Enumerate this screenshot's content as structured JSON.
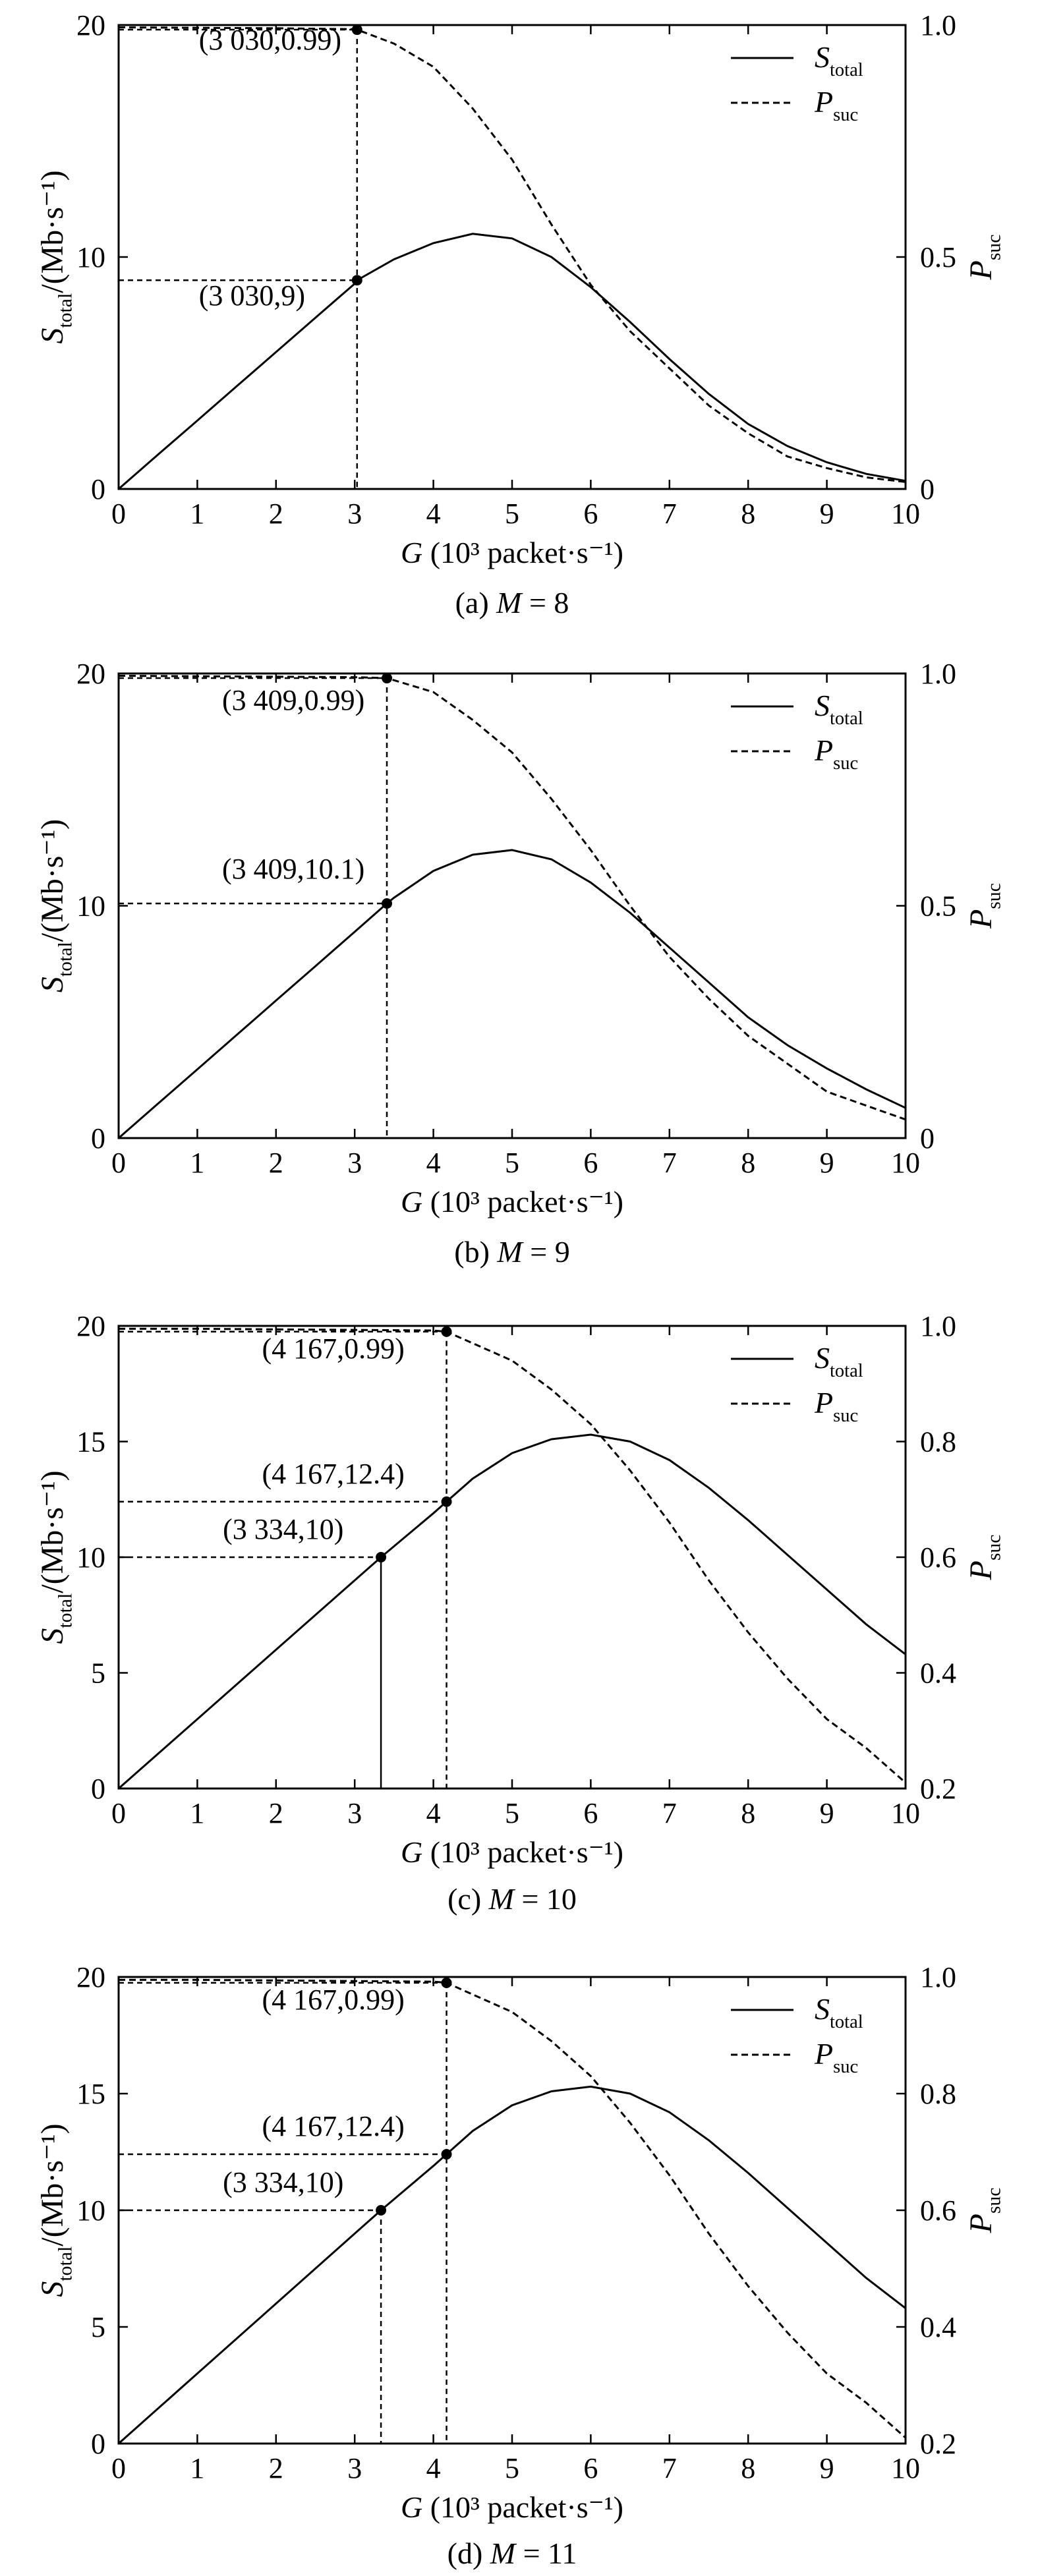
{
  "chart_data": [
    {
      "type": "line",
      "caption": "(a) M = 8",
      "caption_prefix": "(a) ",
      "caption_var": "M",
      "caption_value": " = 8",
      "xlabel_var": "G",
      "xlabel_unit": " (10³ packet·s⁻¹)",
      "ylabel_left": "Stotal/(Mb·s⁻¹)",
      "ylabel_right": "Psuc",
      "xlim": [
        0,
        10
      ],
      "ylim_left": [
        0,
        20
      ],
      "ylim_right": [
        0,
        1
      ],
      "xticks": [
        "0",
        "1",
        "2",
        "3",
        "4",
        "5",
        "6",
        "7",
        "8",
        "9",
        "10"
      ],
      "yticks_left": [
        "0",
        "10",
        "20"
      ],
      "yticks_left_values": [
        0,
        10,
        20
      ],
      "yticks_right": [
        "0",
        "0.5",
        "1.0"
      ],
      "yticks_right_values": [
        0,
        0.5,
        1.0
      ],
      "legend_position": "top-right",
      "series": [
        {
          "name": "Stotal",
          "axis": "left",
          "style": "solid",
          "x": [
            0,
            0.5,
            1,
            1.5,
            2,
            2.5,
            3,
            3.03,
            3.5,
            4,
            4.5,
            5,
            5.5,
            6,
            6.5,
            7,
            7.5,
            8,
            8.5,
            9,
            9.5,
            10
          ],
          "y": [
            0,
            1.48,
            2.95,
            4.43,
            5.9,
            7.38,
            8.85,
            9,
            9.9,
            10.6,
            11,
            10.8,
            10,
            8.7,
            7.2,
            5.6,
            4.1,
            2.8,
            1.85,
            1.15,
            0.65,
            0.35
          ]
        },
        {
          "name": "Psuc",
          "axis": "right",
          "style": "dashed",
          "x": [
            0,
            1,
            2,
            3,
            3.03,
            3.5,
            4,
            4.5,
            5,
            5.5,
            6,
            6.5,
            7,
            7.5,
            8,
            8.5,
            9,
            9.5,
            10
          ],
          "y": [
            0.995,
            0.994,
            0.993,
            0.991,
            0.99,
            0.96,
            0.91,
            0.82,
            0.71,
            0.57,
            0.44,
            0.34,
            0.26,
            0.18,
            0.12,
            0.07,
            0.045,
            0.025,
            0.015
          ]
        }
      ],
      "annotations": [
        {
          "text": "(3 030,0.99)",
          "x": 3.03,
          "y": 0.99,
          "axis": "right",
          "drop_to_axis": true,
          "drop_style": "dashed",
          "guide_to_y_axis": true,
          "label_dx": -240,
          "label_dy": 30
        },
        {
          "text": "(3 030,9)",
          "x": 3.03,
          "y": 9,
          "axis": "left",
          "drop_to_axis": false,
          "drop_style": "dashed",
          "guide_to_y_axis": true,
          "label_dx": -240,
          "label_dy": 38
        }
      ]
    },
    {
      "type": "line",
      "caption": "(b) M = 9",
      "caption_prefix": "(b) ",
      "caption_var": "M",
      "caption_value": " = 9",
      "xlabel_var": "G",
      "xlabel_unit": " (10³ packet·s⁻¹)",
      "ylabel_left": "Stotal/(Mb·s⁻¹)",
      "ylabel_right": "Psuc",
      "xlim": [
        0,
        10
      ],
      "ylim_left": [
        0,
        20
      ],
      "ylim_right": [
        0,
        1
      ],
      "xticks": [
        "0",
        "1",
        "2",
        "3",
        "4",
        "5",
        "6",
        "7",
        "8",
        "9",
        "10"
      ],
      "yticks_left": [
        "0",
        "10",
        "20"
      ],
      "yticks_left_values": [
        0,
        10,
        20
      ],
      "yticks_right": [
        "0",
        "0.5",
        "1.0"
      ],
      "yticks_right_values": [
        0,
        0.5,
        1.0
      ],
      "legend_position": "top-right",
      "series": [
        {
          "name": "Stotal",
          "axis": "left",
          "style": "solid",
          "x": [
            0,
            0.5,
            1,
            1.5,
            2,
            2.5,
            3,
            3.409,
            3.5,
            4,
            4.5,
            5,
            5.5,
            6,
            6.5,
            7,
            7.5,
            8,
            8.5,
            9,
            9.5,
            10
          ],
          "y": [
            0,
            1.48,
            2.96,
            4.44,
            5.92,
            7.4,
            8.88,
            10.1,
            10.35,
            11.5,
            12.2,
            12.4,
            12.0,
            11.0,
            9.7,
            8.2,
            6.7,
            5.2,
            4.0,
            3.0,
            2.1,
            1.3
          ]
        },
        {
          "name": "Psuc",
          "axis": "right",
          "style": "dashed",
          "x": [
            0,
            1,
            2,
            3,
            3.409,
            4,
            4.5,
            5,
            5.5,
            6,
            6.5,
            7,
            7.5,
            8,
            8.5,
            9,
            9.5,
            10
          ],
          "y": [
            0.995,
            0.994,
            0.993,
            0.992,
            0.99,
            0.96,
            0.9,
            0.83,
            0.73,
            0.62,
            0.5,
            0.39,
            0.3,
            0.22,
            0.16,
            0.1,
            0.07,
            0.04
          ]
        }
      ],
      "annotations": [
        {
          "text": "(3 409,0.99)",
          "x": 3.409,
          "y": 0.99,
          "axis": "right",
          "drop_to_axis": true,
          "drop_style": "dashed",
          "guide_to_y_axis": true,
          "label_dx": -250,
          "label_dy": 48
        },
        {
          "text": "(3 409,10.1)",
          "x": 3.409,
          "y": 10.1,
          "axis": "left",
          "drop_to_axis": false,
          "drop_style": "dashed",
          "guide_to_y_axis": true,
          "label_dx": -250,
          "label_dy": -38
        }
      ]
    },
    {
      "type": "line",
      "caption": "(c) M = 10",
      "caption_prefix": "(c) ",
      "caption_var": "M",
      "caption_value": " = 10",
      "xlabel_var": "G",
      "xlabel_unit": " (10³ packet·s⁻¹)",
      "ylabel_left": "Stotal/(Mb·s⁻¹)",
      "ylabel_right": "Psuc",
      "xlim": [
        0,
        10
      ],
      "ylim_left": [
        0,
        20
      ],
      "ylim_right": [
        0.2,
        1.0
      ],
      "xticks": [
        "0",
        "1",
        "2",
        "3",
        "4",
        "5",
        "6",
        "7",
        "8",
        "9",
        "10"
      ],
      "yticks_left": [
        "0",
        "5",
        "10",
        "15",
        "20"
      ],
      "yticks_left_values": [
        0,
        5,
        10,
        15,
        20
      ],
      "yticks_right": [
        "0.2",
        "0.4",
        "0.6",
        "0.8",
        "1.0"
      ],
      "yticks_right_values": [
        0.2,
        0.4,
        0.6,
        0.8,
        1.0
      ],
      "legend_position": "top-right",
      "series": [
        {
          "name": "Stotal",
          "axis": "left",
          "style": "solid",
          "x": [
            0,
            1,
            2,
            3,
            3.334,
            4,
            4.167,
            4.5,
            5,
            5.5,
            6,
            6.5,
            7,
            7.5,
            8,
            8.5,
            9,
            9.5,
            10
          ],
          "y": [
            0,
            3,
            6,
            9,
            10,
            11.9,
            12.4,
            13.4,
            14.5,
            15.1,
            15.3,
            15.0,
            14.2,
            13.0,
            11.6,
            10.1,
            8.6,
            7.1,
            5.8
          ]
        },
        {
          "name": "Psuc",
          "axis": "right",
          "style": "dashed",
          "x": [
            0,
            1,
            2,
            3,
            4,
            4.167,
            4.5,
            5,
            5.5,
            6,
            6.5,
            7,
            7.5,
            8,
            8.5,
            9,
            9.5,
            10
          ],
          "y": [
            0.995,
            0.995,
            0.994,
            0.993,
            0.992,
            0.99,
            0.97,
            0.94,
            0.89,
            0.83,
            0.75,
            0.66,
            0.56,
            0.47,
            0.39,
            0.32,
            0.27,
            0.21
          ]
        }
      ],
      "annotations": [
        {
          "text": "(4 167,0.99)",
          "x": 4.167,
          "y": 0.99,
          "axis": "right",
          "drop_to_axis": true,
          "drop_style": "dashed",
          "guide_to_y_axis": true,
          "label_dx": -280,
          "label_dy": 40
        },
        {
          "text": "(4 167,12.4)",
          "x": 4.167,
          "y": 12.4,
          "axis": "left",
          "drop_to_axis": false,
          "drop_style": "dashed",
          "guide_to_y_axis": true,
          "label_dx": -280,
          "label_dy": -28
        },
        {
          "text": "(3 334,10)",
          "x": 3.334,
          "y": 10,
          "axis": "left",
          "drop_to_axis": true,
          "drop_style": "solid",
          "guide_to_y_axis": true,
          "label_dx": -240,
          "label_dy": -28
        }
      ]
    },
    {
      "type": "line",
      "caption": "(d) M = 11",
      "caption_prefix": "(d) ",
      "caption_var": "M",
      "caption_value": " = 11",
      "xlabel_var": "G",
      "xlabel_unit": " (10³ packet·s⁻¹)",
      "ylabel_left": "Stotal/(Mb·s⁻¹)",
      "ylabel_right": "Psuc",
      "xlim": [
        0,
        10
      ],
      "ylim_left": [
        0,
        20
      ],
      "ylim_right": [
        0.2,
        1.0
      ],
      "xticks": [
        "0",
        "1",
        "2",
        "3",
        "4",
        "5",
        "6",
        "7",
        "8",
        "9",
        "10"
      ],
      "yticks_left": [
        "0",
        "5",
        "10",
        "15",
        "20"
      ],
      "yticks_left_values": [
        0,
        5,
        10,
        15,
        20
      ],
      "yticks_right": [
        "0.2",
        "0.4",
        "0.6",
        "0.8",
        "1.0"
      ],
      "yticks_right_values": [
        0.2,
        0.4,
        0.6,
        0.8,
        1.0
      ],
      "legend_position": "top-right",
      "series": [
        {
          "name": "Stotal",
          "axis": "left",
          "style": "solid",
          "x": [
            0,
            1,
            2,
            3,
            3.334,
            4,
            4.167,
            4.5,
            5,
            5.5,
            6,
            6.5,
            7,
            7.5,
            8,
            8.5,
            9,
            9.5,
            10
          ],
          "y": [
            0,
            3,
            6,
            9,
            10,
            11.9,
            12.4,
            13.4,
            14.5,
            15.1,
            15.3,
            15.0,
            14.2,
            13.0,
            11.6,
            10.1,
            8.6,
            7.1,
            5.8
          ]
        },
        {
          "name": "Psuc",
          "axis": "right",
          "style": "dashed",
          "x": [
            0,
            1,
            2,
            3,
            4,
            4.167,
            4.5,
            5,
            5.5,
            6,
            6.5,
            7,
            7.5,
            8,
            8.5,
            9,
            9.5,
            10
          ],
          "y": [
            0.995,
            0.995,
            0.994,
            0.993,
            0.992,
            0.99,
            0.97,
            0.94,
            0.89,
            0.83,
            0.75,
            0.66,
            0.56,
            0.47,
            0.39,
            0.32,
            0.27,
            0.21
          ]
        }
      ],
      "annotations": [
        {
          "text": "(4 167,0.99)",
          "x": 4.167,
          "y": 0.99,
          "axis": "right",
          "drop_to_axis": true,
          "drop_style": "dashed",
          "guide_to_y_axis": true,
          "label_dx": -280,
          "label_dy": 40
        },
        {
          "text": "(4 167,12.4)",
          "x": 4.167,
          "y": 12.4,
          "axis": "left",
          "drop_to_axis": false,
          "drop_style": "dashed",
          "guide_to_y_axis": true,
          "label_dx": -280,
          "label_dy": -28
        },
        {
          "text": "(3 334,10)",
          "x": 3.334,
          "y": 10,
          "axis": "left",
          "drop_to_axis": true,
          "drop_style": "dashed",
          "guide_to_y_axis": true,
          "label_dx": -240,
          "label_dy": -28
        }
      ]
    }
  ]
}
